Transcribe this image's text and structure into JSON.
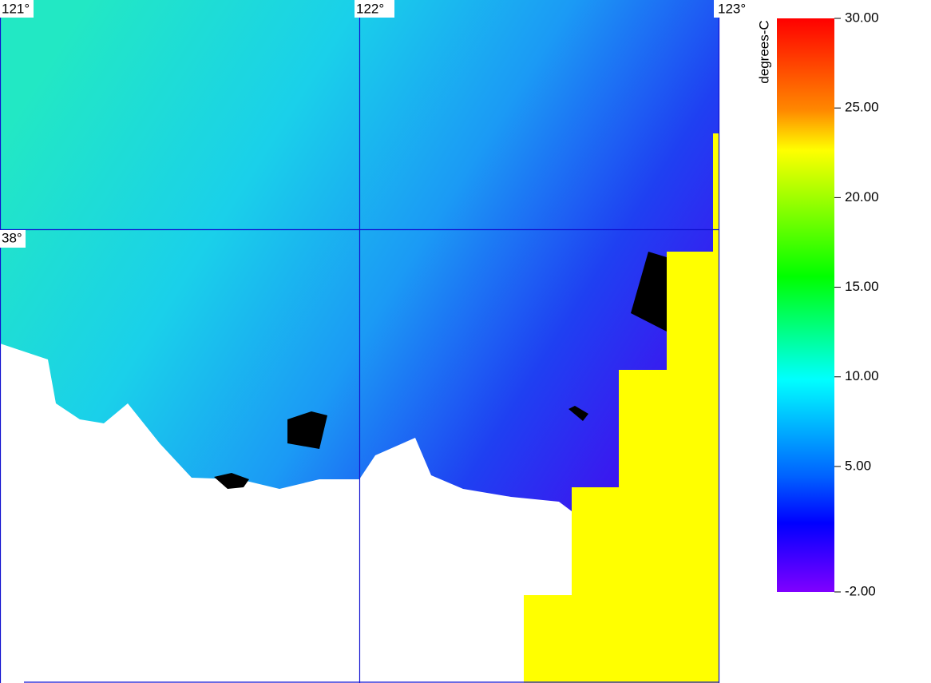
{
  "map": {
    "lon_labels": [
      "121°",
      "122°",
      "123°"
    ],
    "lat_labels": [
      "38°"
    ]
  },
  "colorbar": {
    "title": "degrees-C",
    "range": [
      -2,
      30
    ],
    "ticks": [
      {
        "value": 30,
        "label": "30.00"
      },
      {
        "value": 25,
        "label": "25.00"
      },
      {
        "value": 20,
        "label": "20.00"
      },
      {
        "value": 15,
        "label": "15.00"
      },
      {
        "value": 10,
        "label": "10.00"
      },
      {
        "value": 5,
        "label": "5.00"
      },
      {
        "value": -2,
        "label": "-2.00"
      }
    ]
  }
}
